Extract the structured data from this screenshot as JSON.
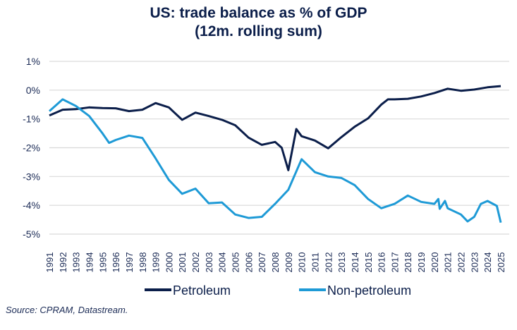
{
  "chart_data": {
    "type": "line",
    "title": [
      "US: trade balance as % of GDP",
      "(12m. rolling sum)"
    ],
    "xlabel": "",
    "ylabel": "",
    "ylim": [
      -5,
      1
    ],
    "xlim": [
      1991,
      2025
    ],
    "yticks": [
      "1%",
      "0%",
      "-1%",
      "-2%",
      "-3%",
      "-4%",
      "-5%"
    ],
    "ytick_values": [
      1,
      0,
      -1,
      -2,
      -3,
      -4,
      -5
    ],
    "xticks": [
      "1991",
      "1992",
      "1993",
      "1994",
      "1995",
      "1996",
      "1997",
      "1998",
      "1999",
      "2000",
      "2001",
      "2002",
      "2003",
      "2004",
      "2005",
      "2006",
      "2007",
      "2008",
      "2009",
      "2010",
      "2011",
      "2012",
      "2013",
      "2014",
      "2015",
      "2016",
      "2017",
      "2018",
      "2019",
      "2020",
      "2021",
      "2022",
      "2023",
      "2024",
      "2025"
    ],
    "grid": "horizontal",
    "legend_position": "bottom",
    "series": [
      {
        "name": "Petroleum",
        "color": "#0b1e4a",
        "x": [
          1991,
          1992,
          1993,
          1994,
          1995,
          1996,
          1997,
          1998,
          1999,
          2000,
          2001,
          2002,
          2003,
          2004,
          2005,
          2006,
          2007,
          2008,
          2008.5,
          2009,
          2009.6,
          2010,
          2011,
          2012,
          2013,
          2014,
          2015,
          2016,
          2016.5,
          2017,
          2018,
          2019,
          2020,
          2021,
          2022,
          2023,
          2024,
          2025
        ],
        "y": [
          -0.88,
          -0.68,
          -0.66,
          -0.6,
          -0.62,
          -0.63,
          -0.73,
          -0.68,
          -0.45,
          -0.6,
          -1.03,
          -0.78,
          -0.9,
          -1.03,
          -1.22,
          -1.65,
          -1.9,
          -1.8,
          -2.0,
          -2.78,
          -1.35,
          -1.6,
          -1.75,
          -2.02,
          -1.63,
          -1.27,
          -0.98,
          -0.5,
          -0.32,
          -0.32,
          -0.3,
          -0.22,
          -0.1,
          0.05,
          -0.02,
          0.02,
          0.1,
          0.14
        ]
      },
      {
        "name": "Non-petroleum",
        "color": "#1e9ad6",
        "x": [
          1991,
          1992,
          1993,
          1994,
          1995,
          1995.5,
          1996,
          1997,
          1998,
          1999,
          2000,
          2001,
          2002,
          2003,
          2004,
          2005,
          2006,
          2007,
          2008,
          2009,
          2010,
          2011,
          2012,
          2013,
          2014,
          2015,
          2016,
          2017,
          2018,
          2019,
          2020,
          2020.3,
          2020.4,
          2020.8,
          2021,
          2022,
          2022.5,
          2023,
          2023.5,
          2024,
          2024.7,
          2025
        ],
        "y": [
          -0.73,
          -0.32,
          -0.55,
          -0.9,
          -1.5,
          -1.83,
          -1.73,
          -1.58,
          -1.66,
          -2.37,
          -3.12,
          -3.6,
          -3.42,
          -3.93,
          -3.9,
          -4.32,
          -4.44,
          -4.4,
          -3.95,
          -3.46,
          -2.4,
          -2.85,
          -3.0,
          -3.05,
          -3.3,
          -3.78,
          -4.1,
          -3.95,
          -3.66,
          -3.88,
          -3.95,
          -3.78,
          -4.12,
          -3.85,
          -4.1,
          -4.32,
          -4.56,
          -4.4,
          -3.95,
          -3.85,
          -4.02,
          -4.6
        ]
      }
    ]
  },
  "source": "Source: CPRAM, Datastream."
}
